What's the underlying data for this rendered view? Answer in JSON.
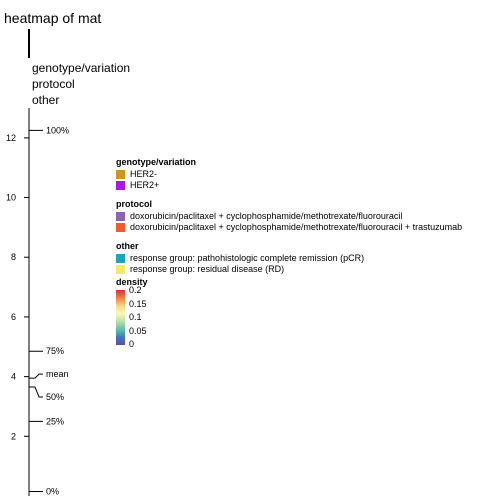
{
  "title": "heatmap of mat",
  "annotation_tracks": [
    "genotype/variation",
    "protocol",
    "other"
  ],
  "chart_data": {
    "type": "boxplot",
    "title": "heatmap of mat",
    "ylim": [
      0,
      13
    ],
    "y_ticks": [
      2,
      4,
      6,
      8,
      10,
      12
    ],
    "grid": false,
    "summary": [
      {
        "label": "100%",
        "value": 12.25
      },
      {
        "label": "75%",
        "value": 4.85
      },
      {
        "label": "mean",
        "value": 3.95
      },
      {
        "label": "50%",
        "value": 3.65
      },
      {
        "label": "25%",
        "value": 2.5
      },
      {
        "label": "0%",
        "value": 0.15
      }
    ]
  },
  "legend": {
    "groups": [
      {
        "title": "genotype/variation",
        "items": [
          {
            "label": "HER2-",
            "color": "#d4931e"
          },
          {
            "label": "HER2+",
            "color": "#a01ee0"
          }
        ]
      },
      {
        "title": "protocol",
        "items": [
          {
            "label": "doxorubicin/paclitaxel + cyclophosphamide/methotrexate/fluorouracil",
            "color": "#8e63b5"
          },
          {
            "label": "doxorubicin/paclitaxel + cyclophosphamide/methotrexate/fluorouracil + trastuzumab",
            "color": "#f05a32"
          }
        ]
      },
      {
        "title": "other",
        "items": [
          {
            "label": "response group: pathohistologic complete remission (pCR)",
            "color": "#1fa2bf"
          },
          {
            "label": "response group: residual disease (RD)",
            "color": "#f3e96a"
          }
        ]
      }
    ],
    "density": {
      "title": "density",
      "ticks": [
        "0.2",
        "0.15",
        "0.1",
        "0.05",
        "0"
      ],
      "colors": [
        "#d7322e",
        "#f07e4a",
        "#fbd389",
        "#fcf8b8",
        "#b9e2a3",
        "#66bea9",
        "#3d7bb7",
        "#5e4fa2"
      ]
    }
  }
}
